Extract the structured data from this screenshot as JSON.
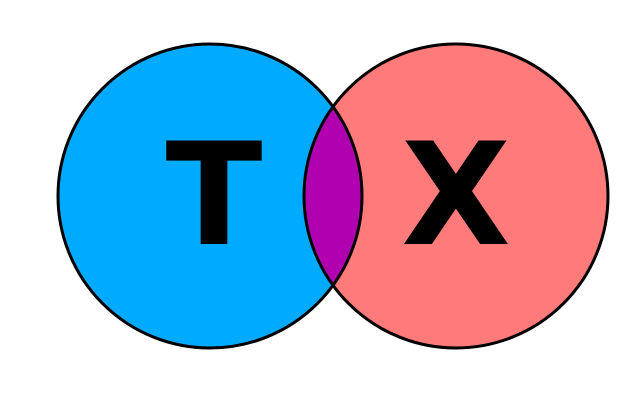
{
  "diagram": {
    "type": "venn",
    "sets": [
      {
        "label": "T",
        "color": "#00aaff"
      },
      {
        "label": "X",
        "color": "#ff7b7b"
      }
    ],
    "intersection": {
      "color": "#b000b0"
    },
    "outline_color": "#000000",
    "background": "#ffffff"
  }
}
